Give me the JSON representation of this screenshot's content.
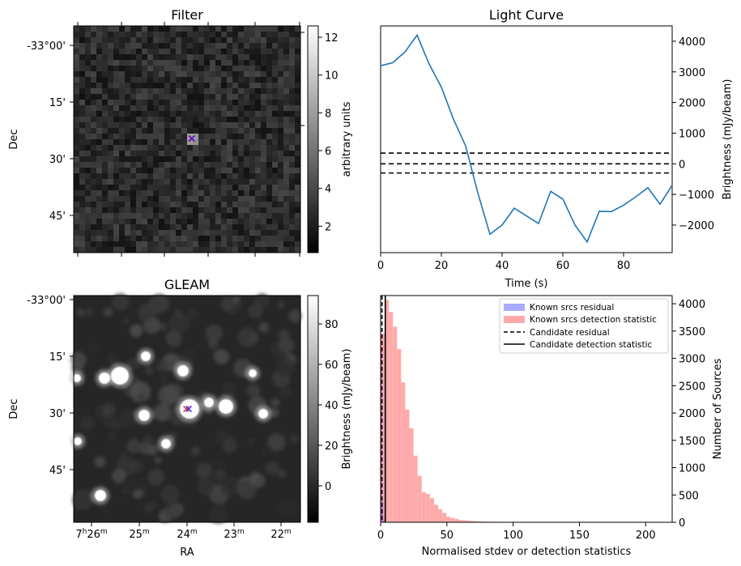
{
  "colors": {
    "line": "#1f77b4",
    "known_residual": "#aaaaff",
    "known_detection": "#ffaaaa",
    "overlap": "#a070c8",
    "marker_red": "#ff2020",
    "marker_blue": "#2020ff"
  },
  "filter": {
    "title": "Filter",
    "ylabel": "Dec",
    "yticks": [
      "-33°00'",
      "15'",
      "30'",
      "45'"
    ],
    "colorbar": {
      "label": "arbitrary units",
      "ticks": [
        "12",
        "10",
        "8",
        "6",
        "4",
        "2"
      ],
      "range": [
        0.6,
        12.6
      ]
    }
  },
  "gleam": {
    "title": "GLEAM",
    "ylabel": "Dec",
    "xlabel": "RA",
    "yticks": [
      "-33°00'",
      "15'",
      "30'",
      "45'"
    ],
    "xticks": [
      {
        "h": "7",
        "hs": "h",
        "m": "26",
        "ms": "m"
      },
      {
        "h": "",
        "hs": "",
        "m": "25",
        "ms": "m"
      },
      {
        "h": "",
        "hs": "",
        "m": "24",
        "ms": "m"
      },
      {
        "h": "",
        "hs": "",
        "m": "23",
        "ms": "m"
      },
      {
        "h": "",
        "hs": "",
        "m": "22",
        "ms": "m"
      }
    ],
    "colorbar": {
      "label": "Brightness (mJy/beam)",
      "ticks": [
        "80",
        "60",
        "40",
        "20",
        "0"
      ],
      "range": [
        -18,
        94
      ]
    }
  },
  "chart_data": [
    {
      "type": "line",
      "title": "Light Curve",
      "xlabel": "Time (s)",
      "ylabel": "Brightness (mJy/beam)",
      "xlim": [
        0,
        96
      ],
      "ylim": [
        -2900,
        4500
      ],
      "xticks": [
        0,
        20,
        40,
        60,
        80
      ],
      "yticks": [
        -2000,
        -1000,
        0,
        1000,
        2000,
        3000,
        4000
      ],
      "series": [
        {
          "x": [
            0,
            4,
            8,
            12,
            16,
            20,
            24,
            28,
            32,
            36,
            40,
            44,
            48,
            52,
            56,
            60,
            64,
            68,
            72,
            76,
            80,
            84,
            88,
            92,
            96
          ],
          "y": [
            3200,
            3300,
            3650,
            4200,
            3250,
            2500,
            1450,
            580,
            -950,
            -2300,
            -2000,
            -1450,
            -1700,
            -1950,
            -900,
            -1150,
            -2000,
            -2550,
            -1550,
            -1560,
            -1350,
            -1080,
            -780,
            -1320,
            -700
          ]
        }
      ],
      "hlines": [
        350,
        0,
        -300
      ]
    },
    {
      "type": "bar",
      "title": "",
      "xlabel": "Normalised stdev or detection statistics",
      "ylabel": "Number of Sources",
      "xlim": [
        0,
        220
      ],
      "ylim": [
        0,
        4150
      ],
      "xticks": [
        0,
        50,
        100,
        150,
        200
      ],
      "yticks": [
        0,
        500,
        1000,
        1500,
        2000,
        2500,
        3000,
        3500,
        4000
      ],
      "bin_width": 3.1,
      "series": [
        {
          "name": "Known srcs residual",
          "bin_start": 0,
          "values": [
            3200,
            380,
            60,
            10,
            3
          ]
        },
        {
          "name": "Known srcs detection statistic",
          "bin_start": 0,
          "values": [
            3450,
            4070,
            3850,
            3580,
            3170,
            2560,
            2060,
            1720,
            1220,
            850,
            550,
            520,
            440,
            320,
            240,
            170,
            100,
            80,
            60,
            40,
            35,
            28,
            22,
            18,
            15,
            12,
            10,
            9,
            8,
            7,
            6,
            6,
            5,
            5,
            4,
            4,
            4,
            3,
            3,
            3,
            3,
            3,
            2,
            2,
            2,
            2,
            2,
            2,
            2,
            2,
            2,
            2,
            1,
            1,
            1,
            1,
            1,
            1,
            1,
            1,
            1,
            1,
            1,
            1,
            1,
            1,
            1,
            1,
            1,
            1
          ]
        }
      ],
      "vlines": [
        {
          "name": "Candidate residual",
          "x": 1.0,
          "style": "dashed"
        },
        {
          "name": "Candidate detection statistic",
          "x": 3.5,
          "style": "solid"
        }
      ]
    }
  ]
}
